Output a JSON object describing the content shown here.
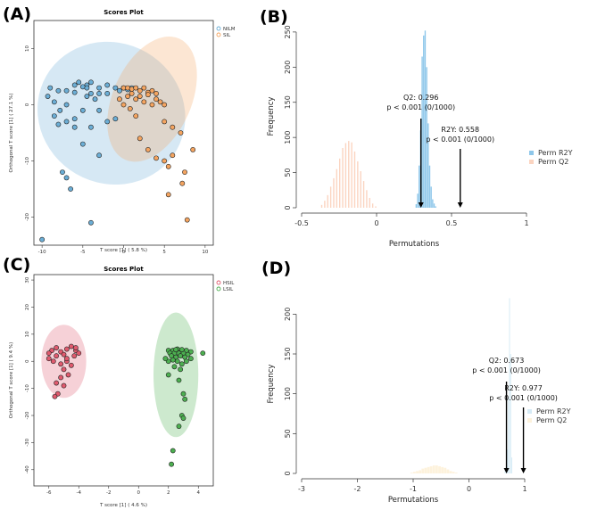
{
  "chart_data": [
    {
      "panel": "(A)",
      "type": "scatter",
      "title": "Scores Plot",
      "xlabel": "T score [1]  ( 5.8 %)",
      "ylabel": "Orthogonal T score [1]  ( 27.1 %)",
      "xlim": [
        -11,
        11
      ],
      "ylim": [
        -25,
        15
      ],
      "xticks": [
        -10,
        -5,
        0,
        5,
        10
      ],
      "yticks": [
        10,
        0,
        -10,
        -20
      ],
      "legend": {
        "position": "top-right",
        "entries": [
          "NILM",
          "SIL"
        ]
      },
      "series": [
        {
          "name": "NILM",
          "color": "#6baed6",
          "ellipse": {
            "center": [
              -1.5,
              -1.5
            ],
            "radii": [
              9.2,
              12.5
            ],
            "angle": 30
          },
          "points": [
            [
              -4.5,
              3.5
            ],
            [
              -4,
              4
            ],
            [
              -3,
              3
            ],
            [
              -2,
              3.5
            ],
            [
              -5,
              3.2
            ],
            [
              -5.5,
              4
            ],
            [
              -6,
              3.5
            ],
            [
              -4,
              2
            ],
            [
              -3,
              2
            ],
            [
              -2,
              2
            ],
            [
              -1,
              3
            ],
            [
              -0.5,
              2.5
            ],
            [
              0,
              3
            ],
            [
              0.5,
              2.7
            ],
            [
              1,
              3
            ],
            [
              -3.5,
              1
            ],
            [
              -4.5,
              1.5
            ],
            [
              -6,
              2.2
            ],
            [
              -7,
              2.5
            ],
            [
              -8,
              2.5
            ],
            [
              -9,
              3
            ],
            [
              -9.3,
              1.5
            ],
            [
              -8.5,
              0.5
            ],
            [
              -7,
              0
            ],
            [
              -7.8,
              -1
            ],
            [
              -8.5,
              -2
            ],
            [
              -6,
              -2.5
            ],
            [
              -5,
              -1
            ],
            [
              -3,
              -1
            ],
            [
              -2,
              -3
            ],
            [
              -1,
              -2.5
            ],
            [
              -4,
              -4
            ],
            [
              -6,
              -4
            ],
            [
              -7,
              -3
            ],
            [
              -8,
              -3.5
            ],
            [
              -5,
              -7
            ],
            [
              -3,
              -9
            ],
            [
              -7.5,
              -12
            ],
            [
              -7,
              -13
            ],
            [
              -6.5,
              -15
            ],
            [
              -4,
              -21
            ],
            [
              -10,
              -24
            ],
            [
              -4.5,
              3
            ]
          ]
        },
        {
          "name": "SIL",
          "color": "#f4a460",
          "ellipse": {
            "center": [
              3.5,
              1
            ],
            "radii": [
              4.8,
              11.8
            ],
            "angle": 24
          },
          "points": [
            [
              0,
              3
            ],
            [
              0.5,
              3
            ],
            [
              1,
              2.8
            ],
            [
              1.5,
              3
            ],
            [
              2,
              2.5
            ],
            [
              2.5,
              3
            ],
            [
              3,
              2.2
            ],
            [
              3.5,
              2.5
            ],
            [
              4,
              2
            ],
            [
              1,
              2
            ],
            [
              2,
              1.5
            ],
            [
              3,
              1.8
            ],
            [
              4,
              1
            ],
            [
              0.5,
              1.5
            ],
            [
              1.5,
              1
            ],
            [
              2.5,
              0.5
            ],
            [
              3.5,
              0
            ],
            [
              4.5,
              0.5
            ],
            [
              5,
              0
            ],
            [
              5,
              -3
            ],
            [
              6,
              -4
            ],
            [
              7,
              -5
            ],
            [
              8.5,
              -8
            ],
            [
              6,
              -9
            ],
            [
              4,
              -9.5
            ],
            [
              3,
              -8
            ],
            [
              2,
              -6
            ],
            [
              5,
              -10
            ],
            [
              5.5,
              -11
            ],
            [
              7.5,
              -12
            ],
            [
              7.2,
              -14
            ],
            [
              5.5,
              -16
            ],
            [
              7.8,
              -20.5
            ],
            [
              0.8,
              -0.7
            ],
            [
              -0.5,
              1
            ],
            [
              1.5,
              -2
            ],
            [
              0,
              0
            ]
          ]
        }
      ]
    },
    {
      "panel": "(B)",
      "type": "histogram",
      "xlabel": "Permutations",
      "ylabel": "Frequency",
      "xlim": [
        -0.5,
        1.0
      ],
      "ylim": [
        0,
        260
      ],
      "xticks": [
        -0.5,
        0.0,
        0.5,
        1.0
      ],
      "yticks": [
        0,
        50,
        100,
        150,
        200,
        250
      ],
      "legend": {
        "position": "right",
        "entries": [
          "Perm R2Y",
          "Perm Q2"
        ]
      },
      "series": [
        {
          "name": "Perm R2Y",
          "color": "#8ec7ea",
          "bin_width": 0.01,
          "bin_starts": [
            0.26,
            0.27,
            0.28,
            0.29,
            0.3,
            0.31,
            0.32,
            0.33,
            0.34,
            0.35,
            0.36,
            0.37,
            0.38,
            0.39
          ],
          "counts": [
            5,
            20,
            60,
            110,
            215,
            245,
            252,
            200,
            120,
            60,
            30,
            12,
            6,
            2
          ]
        },
        {
          "name": "Perm Q2",
          "color": "#fbd4c0",
          "bin_width": 0.01,
          "bin_starts": [
            -0.37,
            -0.35,
            -0.33,
            -0.31,
            -0.29,
            -0.27,
            -0.25,
            -0.23,
            -0.21,
            -0.19,
            -0.17,
            -0.15,
            -0.13,
            -0.11,
            -0.09,
            -0.07,
            -0.05,
            -0.03,
            -0.01
          ],
          "counts": [
            4,
            10,
            18,
            30,
            42,
            55,
            70,
            85,
            92,
            95,
            93,
            80,
            66,
            52,
            38,
            25,
            14,
            6,
            2
          ]
        }
      ],
      "annotations": [
        {
          "text_lines": [
            "Q2: 0.296",
            "p < 0.001 (0/1000)"
          ],
          "arrow_x": 0.296
        },
        {
          "text_lines": [
            "R2Y: 0.558",
            "p < 0.001 (0/1000)"
          ],
          "arrow_x": 0.558
        }
      ]
    },
    {
      "panel": "(C)",
      "type": "scatter",
      "title": "Scores Plot",
      "xlabel": "T score [1]  ( 4.6 %)",
      "ylabel": "Orthogonal T score [1]  ( 9.4 %)",
      "xlim": [
        -7,
        5
      ],
      "ylim": [
        -46,
        32
      ],
      "xticks": [
        -6,
        -4,
        -2,
        0,
        2,
        4
      ],
      "yticks": [
        30,
        20,
        10,
        0,
        -10,
        -20,
        -30,
        -40
      ],
      "legend": {
        "position": "top-left",
        "entries": [
          "HSIL",
          "LSIL"
        ]
      },
      "series": [
        {
          "name": "HSIL",
          "color": "#e05a6e",
          "ellipse": {
            "center": [
              -5,
              0
            ],
            "radii": [
              1.5,
              13.5
            ],
            "angle": 0
          },
          "points": [
            [
              -5.5,
              5
            ],
            [
              -5.8,
              4
            ],
            [
              -6,
              3
            ],
            [
              -5.2,
              3.5
            ],
            [
              -4.8,
              4.5
            ],
            [
              -4.5,
              5.5
            ],
            [
              -4.2,
              4
            ],
            [
              -4,
              3
            ],
            [
              -4.3,
              2
            ],
            [
              -5,
              2.5
            ],
            [
              -5.5,
              2
            ],
            [
              -6,
              1
            ],
            [
              -5.7,
              0
            ],
            [
              -5.2,
              -1
            ],
            [
              -4.8,
              0
            ],
            [
              -4.5,
              -1.5
            ],
            [
              -5,
              -3
            ],
            [
              -4.7,
              -5
            ],
            [
              -5.2,
              -6
            ],
            [
              -5.5,
              -8
            ],
            [
              -5,
              -9
            ],
            [
              -5.4,
              -12
            ],
            [
              -5.6,
              -13
            ],
            [
              -4.8,
              1
            ],
            [
              -4.2,
              5
            ]
          ]
        },
        {
          "name": "LSIL",
          "color": "#4caf50",
          "ellipse": {
            "center": [
              2.5,
              -5
            ],
            "radii": [
              1.5,
              23
            ],
            "angle": 0
          },
          "points": [
            [
              2,
              4
            ],
            [
              2.3,
              4
            ],
            [
              2.6,
              4.5
            ],
            [
              2.9,
              4
            ],
            [
              3.2,
              4
            ],
            [
              3.5,
              3.5
            ],
            [
              2.1,
              3
            ],
            [
              2.4,
              3
            ],
            [
              2.7,
              3
            ],
            [
              3,
              3
            ],
            [
              3.3,
              2.5
            ],
            [
              2.2,
              2
            ],
            [
              2.5,
              1.5
            ],
            [
              2.8,
              2
            ],
            [
              3.1,
              1.5
            ],
            [
              2,
              0
            ],
            [
              2.3,
              0.5
            ],
            [
              2.6,
              0
            ],
            [
              2.9,
              -1
            ],
            [
              3.2,
              0
            ],
            [
              2.4,
              -2
            ],
            [
              2.8,
              -3
            ],
            [
              3.5,
              1
            ],
            [
              1.8,
              1
            ],
            [
              4.3,
              3
            ],
            [
              2,
              -5
            ],
            [
              2.7,
              -7
            ],
            [
              3,
              -12
            ],
            [
              3.1,
              -14
            ],
            [
              2.9,
              -20
            ],
            [
              3,
              -21
            ],
            [
              2.7,
              -24
            ],
            [
              2.3,
              -33
            ],
            [
              2.2,
              -38
            ],
            [
              2.5,
              4.3
            ],
            [
              2.9,
              4.3
            ]
          ]
        }
      ]
    },
    {
      "panel": "(D)",
      "type": "histogram",
      "xlabel": "Permutations",
      "ylabel": "Frequency",
      "xlim": [
        -3,
        1
      ],
      "ylim": [
        0,
        225
      ],
      "xticks": [
        -3,
        -2,
        -1,
        0,
        1
      ],
      "yticks": [
        0,
        50,
        100,
        150,
        200
      ],
      "legend": {
        "position": "right",
        "entries": [
          "Perm R2Y",
          "Perm Q2"
        ]
      },
      "series": [
        {
          "name": "Perm R2Y",
          "color": "#d6ebf6",
          "bin_width": 0.02,
          "bin_starts": [
            0.64,
            0.66,
            0.68,
            0.7,
            0.72,
            0.74,
            0.76
          ],
          "counts": [
            3,
            8,
            30,
            95,
            220,
            150,
            20
          ]
        },
        {
          "name": "Perm Q2",
          "color": "#fdf2dc",
          "bin_width": 0.05,
          "bin_starts": [
            -1.05,
            -1.0,
            -0.95,
            -0.9,
            -0.85,
            -0.8,
            -0.75,
            -0.7,
            -0.65,
            -0.6,
            -0.55,
            -0.5,
            -0.45,
            -0.4,
            -0.35,
            -0.3,
            -0.25
          ],
          "counts": [
            1,
            2,
            3,
            4,
            6,
            7,
            8,
            9,
            10,
            10,
            9,
            8,
            7,
            5,
            3,
            2,
            1
          ]
        }
      ],
      "annotations": [
        {
          "text_lines": [
            "Q2: 0.673",
            "p < 0.001 (0/1000)"
          ],
          "arrow_x": 0.673
        },
        {
          "text_lines": [
            "R2Y: 0.977",
            "p < 0.001 (0/1000)"
          ],
          "arrow_x": 0.977
        }
      ]
    }
  ]
}
